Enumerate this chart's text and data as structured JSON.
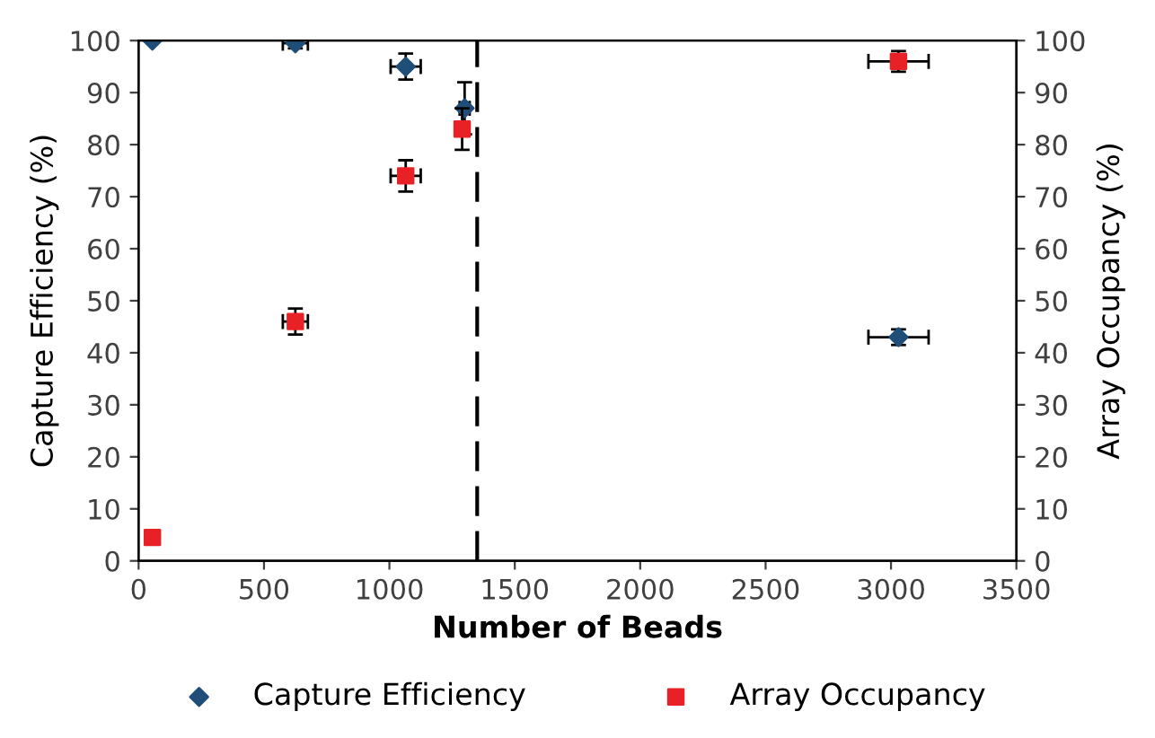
{
  "chart_data": {
    "type": "scatter",
    "xlabel": "Number of Beads",
    "ylabel": "Capture Efficiency (%)",
    "y2label": "Array Occupancy (%)",
    "xlim": [
      0,
      3500
    ],
    "xticks": [
      0,
      500,
      1000,
      1500,
      2000,
      2500,
      3000,
      3500
    ],
    "ylim": [
      0,
      100
    ],
    "yticks": [
      0,
      10,
      20,
      30,
      40,
      50,
      60,
      70,
      80,
      90,
      100
    ],
    "y2lim": [
      0,
      100
    ],
    "y2ticks": [
      0,
      10,
      20,
      30,
      40,
      50,
      60,
      70,
      80,
      90,
      100
    ],
    "grid": false,
    "legend": "bottom",
    "ref_lines": [
      {
        "axis": "x",
        "value": 1350,
        "line_style": "dashed",
        "color": "#000000"
      }
    ],
    "series": [
      {
        "name": "Capture Efficiency",
        "color": "#1f4e79",
        "marker": "diamond",
        "x": [
          55,
          625,
          1065,
          1300,
          3030
        ],
        "values": [
          100,
          99.5,
          95,
          87,
          43
        ],
        "errors": [
          null,
          1,
          2.5,
          5,
          1.5
        ],
        "xerrors": [
          null,
          50,
          60,
          20,
          120
        ]
      },
      {
        "name": "Array Occupancy",
        "color": "#e82127",
        "marker": "square",
        "axis": "y2",
        "x": [
          55,
          625,
          1065,
          1290,
          3030
        ],
        "values": [
          4.5,
          46,
          74,
          83,
          96
        ],
        "errors": [
          null,
          2.5,
          3,
          4,
          2
        ],
        "xerrors": [
          null,
          50,
          60,
          null,
          120
        ]
      }
    ]
  }
}
